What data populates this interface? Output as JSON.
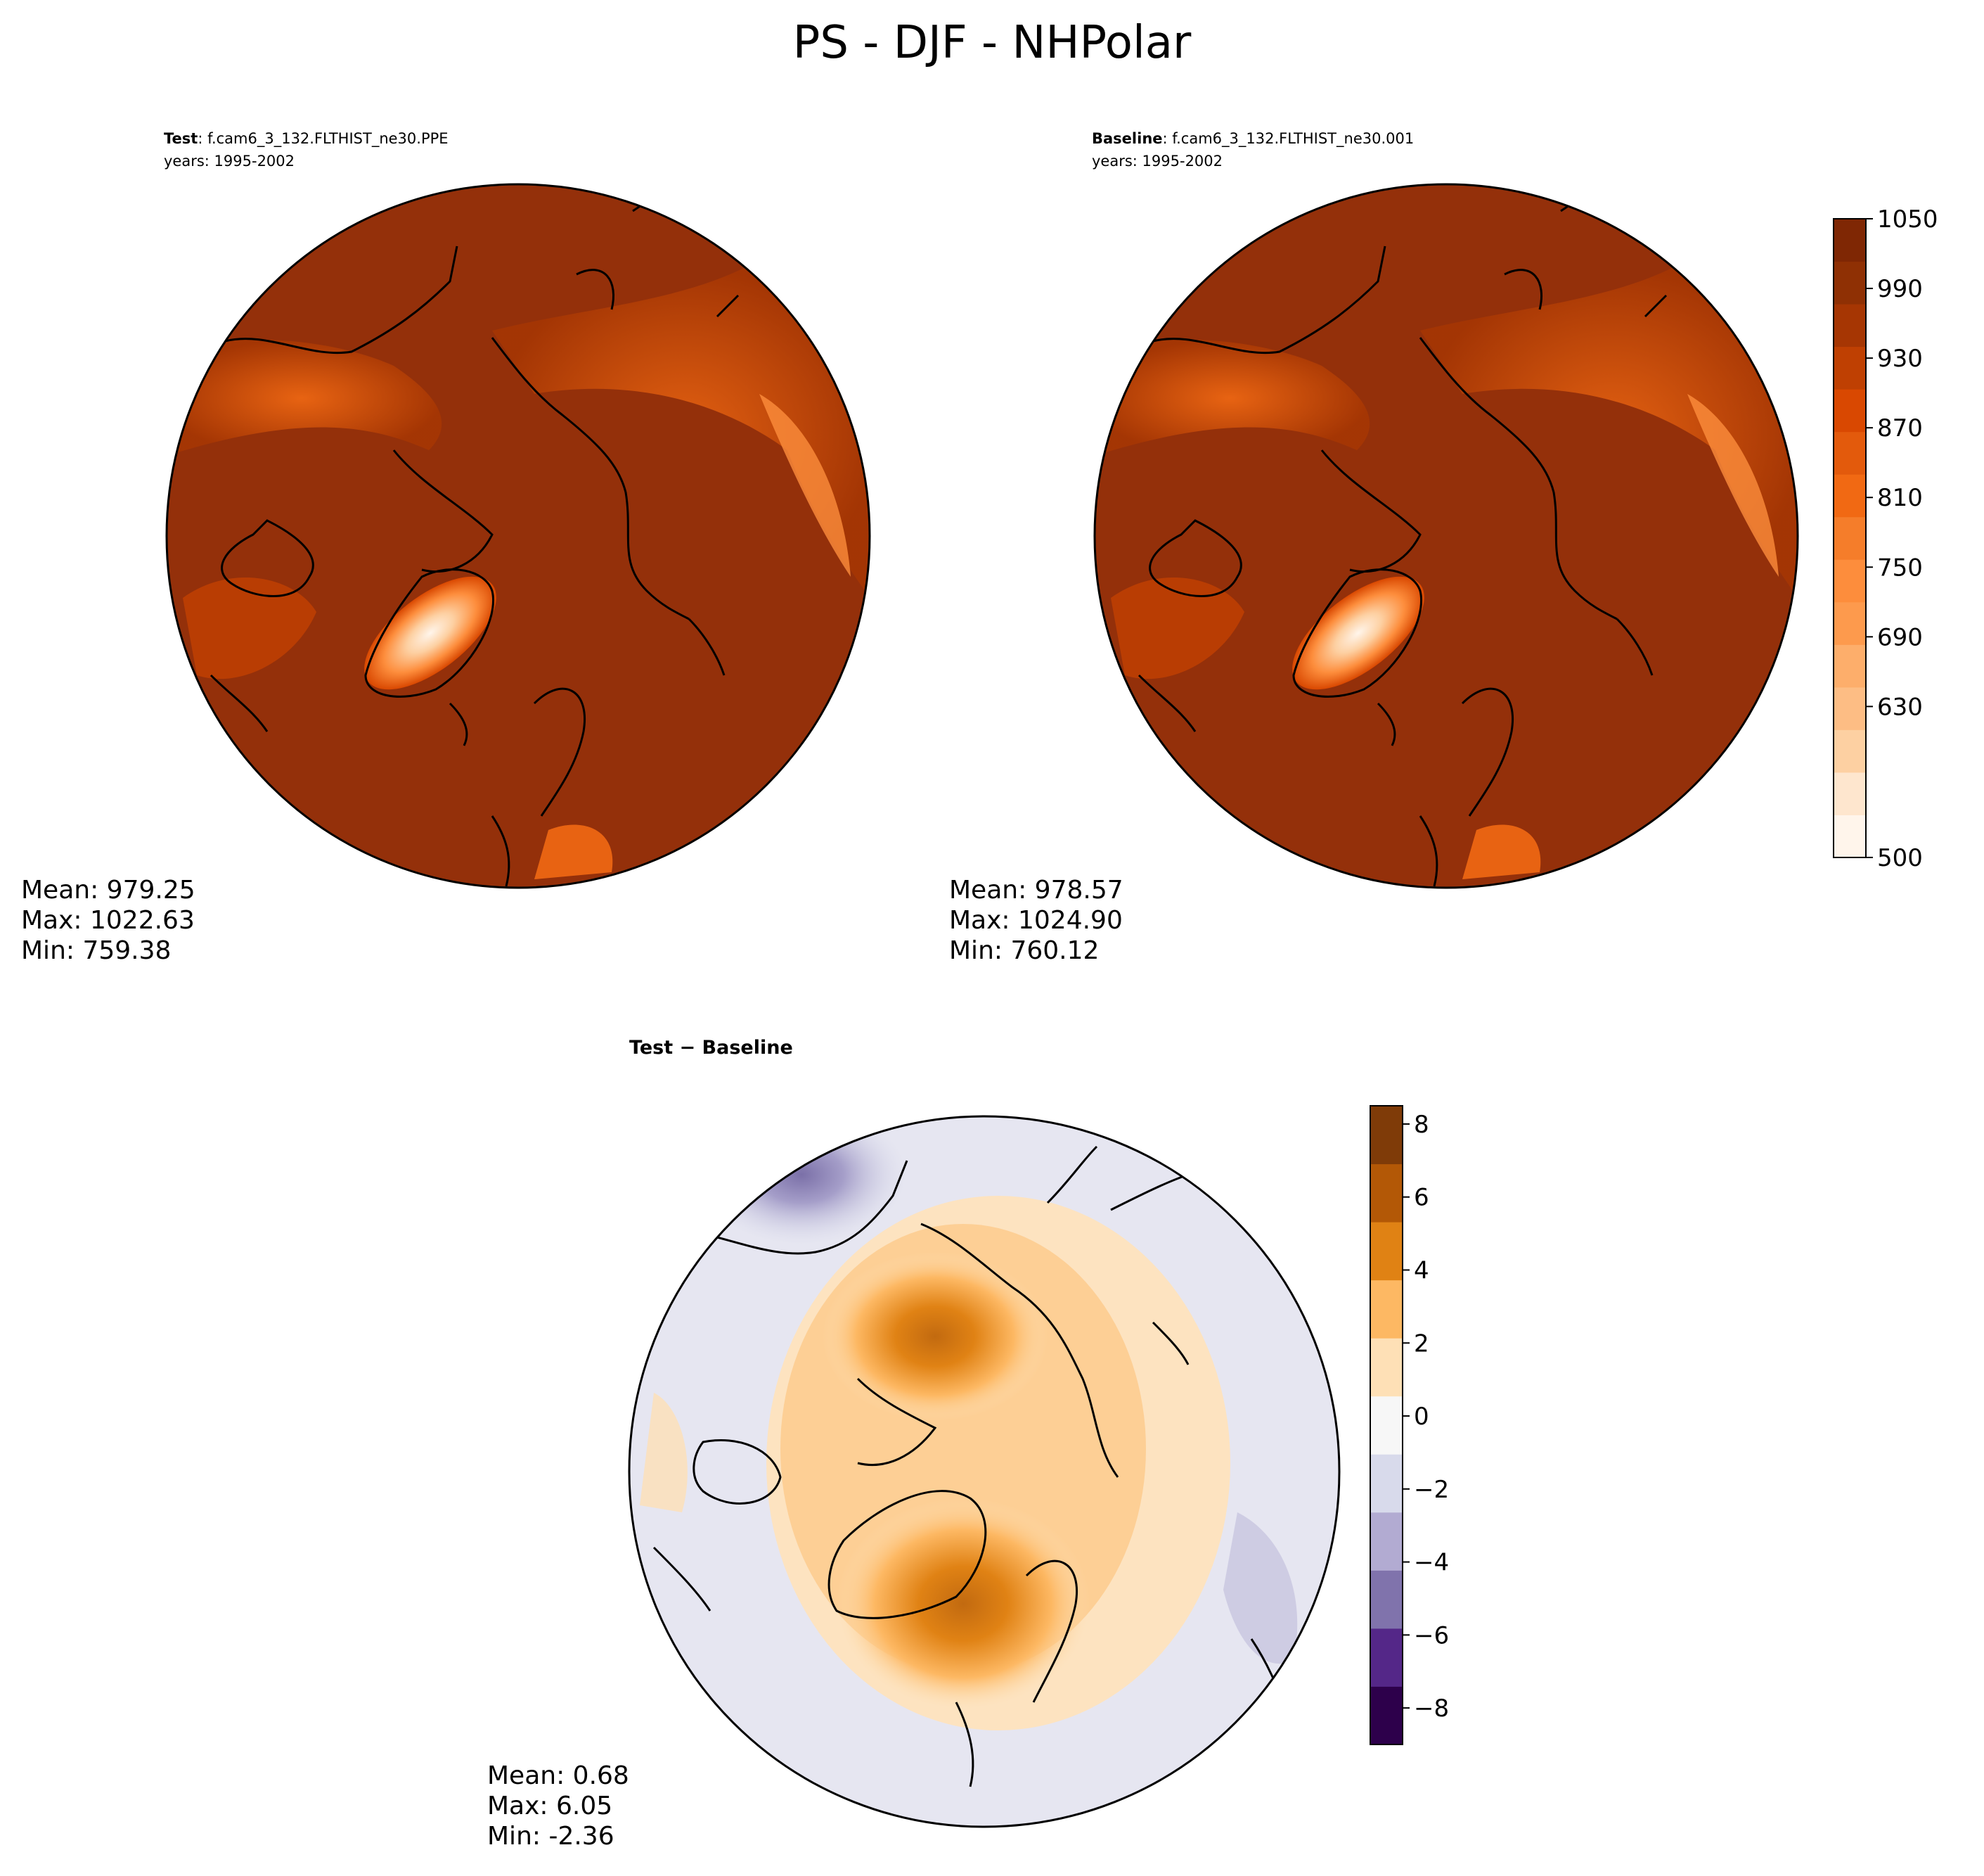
{
  "figure_title": "PS - DJF - NHPolar",
  "colors": {
    "orange_ramp": [
      "#fff5eb",
      "#fee6ce",
      "#fdd0a2",
      "#fdbd84",
      "#fdae6b",
      "#fd9a4d",
      "#fd8d3c",
      "#f57d2a",
      "#f16913",
      "#e35a0c",
      "#d94801",
      "#bf4002",
      "#a63603",
      "#8f3004",
      "#7f2704"
    ],
    "diverging_ramp": [
      "#2d004b",
      "#542788",
      "#8073ac",
      "#b2abd2",
      "#d8daeb",
      "#f7f7f7",
      "#fee0b6",
      "#fdb863",
      "#e08214",
      "#b35806",
      "#7f3b08"
    ],
    "coastline": "#000000"
  },
  "panels": {
    "test": {
      "label_bold": "Test",
      "label_rest": ": f.cam6_3_132.FLTHIST_ne30.PPE",
      "years": "years: 1995-2002",
      "stats": {
        "mean": "Mean: 979.25",
        "max": "Max: 1022.63",
        "min": "Min: 759.38"
      }
    },
    "baseline": {
      "label_bold": "Baseline",
      "label_rest": ": f.cam6_3_132.FLTHIST_ne30.001",
      "years": "years: 1995-2002",
      "stats": {
        "mean": "Mean: 978.57",
        "max": "Max: 1024.90",
        "min": "Min: 760.12"
      }
    },
    "diff": {
      "label": "Test − Baseline",
      "stats": {
        "mean": "Mean:  0.68",
        "max": "Max:  6.05",
        "min": "Min: -2.36"
      }
    }
  },
  "chart_data": [
    {
      "type": "heatmap",
      "name": "Test",
      "projection": "north-polar-stereographic",
      "variable": "PS",
      "season": "DJF",
      "region": "NHPolar",
      "colorbar": {
        "min": 500,
        "max": 1050,
        "ticks": [
          1050,
          990,
          930,
          870,
          810,
          750,
          690,
          630,
          500
        ],
        "tick_labels": [
          "1050",
          "990",
          "930",
          "870",
          "810",
          "750",
          "690",
          "630",
          "500"
        ]
      },
      "stats": {
        "mean": 979.25,
        "max": 1022.63,
        "min": 759.38
      }
    },
    {
      "type": "heatmap",
      "name": "Baseline",
      "projection": "north-polar-stereographic",
      "colorbar": "shared with Test",
      "stats": {
        "mean": 978.57,
        "max": 1024.9,
        "min": 760.12
      }
    },
    {
      "type": "heatmap",
      "name": "Test − Baseline",
      "projection": "north-polar-stereographic",
      "colorbar": {
        "min": -9,
        "max": 8.5,
        "ticks": [
          8,
          6,
          4,
          2,
          0,
          -2,
          -4,
          -6,
          -8
        ],
        "tick_labels": [
          "8",
          "6",
          "4",
          "2",
          "0",
          "−2",
          "−4",
          "−6",
          "−8"
        ]
      },
      "stats": {
        "mean": 0.68,
        "max": 6.05,
        "min": -2.36
      }
    }
  ]
}
